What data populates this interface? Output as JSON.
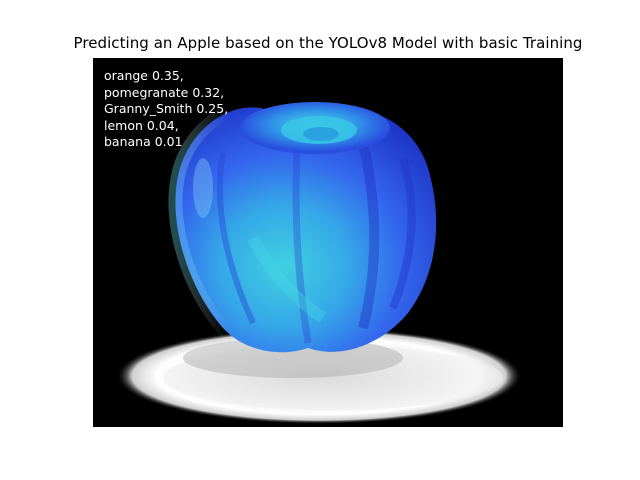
{
  "figure": {
    "title": "Predicting an Apple based on the YOLOv8 Model with basic Training"
  },
  "image": {
    "subject": "apple",
    "background_color": "#000000",
    "apple_colors": [
      "#2f5bf0",
      "#3ec6e2",
      "#1f3fd0"
    ],
    "shadow_color": "#d6d6d6"
  },
  "predictions": [
    {
      "text": "orange 0.35,"
    },
    {
      "text": "pomegranate 0.32,"
    },
    {
      "text": "Granny_Smith 0.25,"
    },
    {
      "text": "lemon 0.04,"
    },
    {
      "text": "banana 0.01"
    }
  ]
}
